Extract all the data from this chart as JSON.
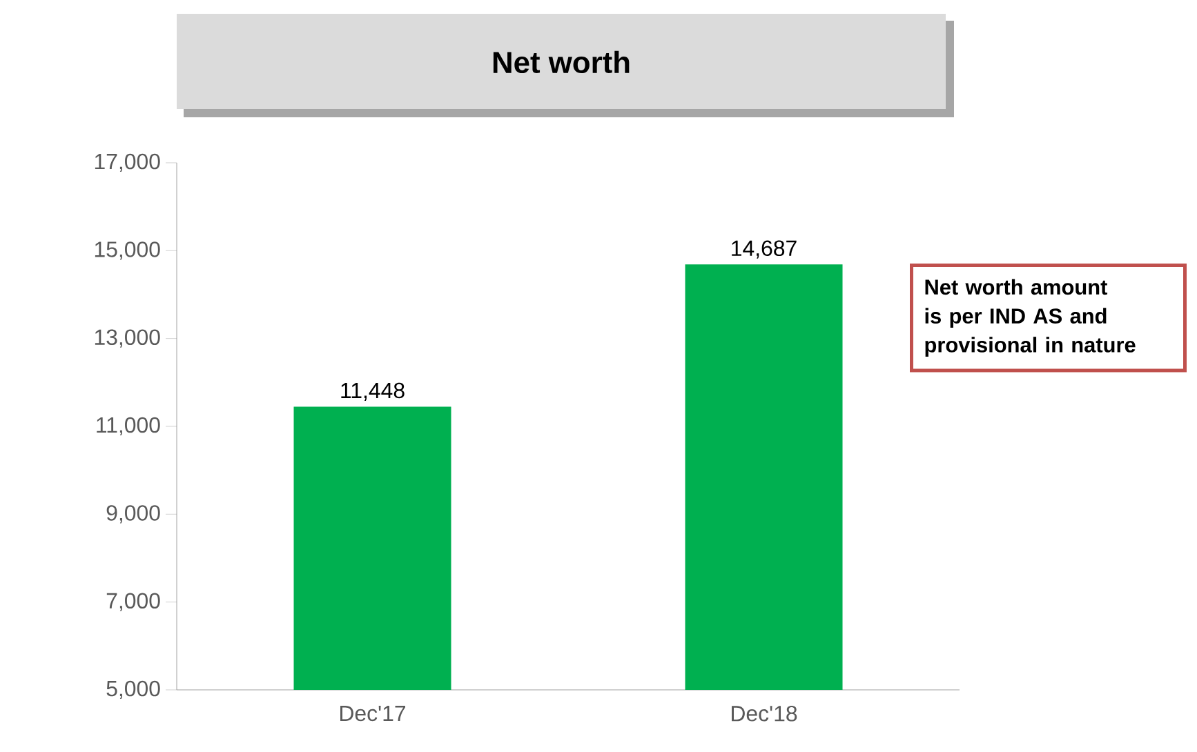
{
  "chart_data": {
    "type": "bar",
    "title": "Net worth",
    "categories": [
      "Dec'17",
      "Dec'18"
    ],
    "values": [
      11448,
      14687
    ],
    "value_labels": [
      "11,448",
      "14,687"
    ],
    "color": "#00b050",
    "ylim": [
      5000,
      17000
    ],
    "yticks": [
      {
        "value": 5000,
        "label": "5,000"
      },
      {
        "value": 7000,
        "label": "7,000"
      },
      {
        "value": 9000,
        "label": "9,000"
      },
      {
        "value": 11000,
        "label": "11,000"
      },
      {
        "value": 13000,
        "label": "13,000"
      },
      {
        "value": 15000,
        "label": "15,000"
      },
      {
        "value": 17000,
        "label": "17,000"
      }
    ],
    "annotations": [
      "Net worth amount is per IND AS and provisional in nature"
    ]
  }
}
